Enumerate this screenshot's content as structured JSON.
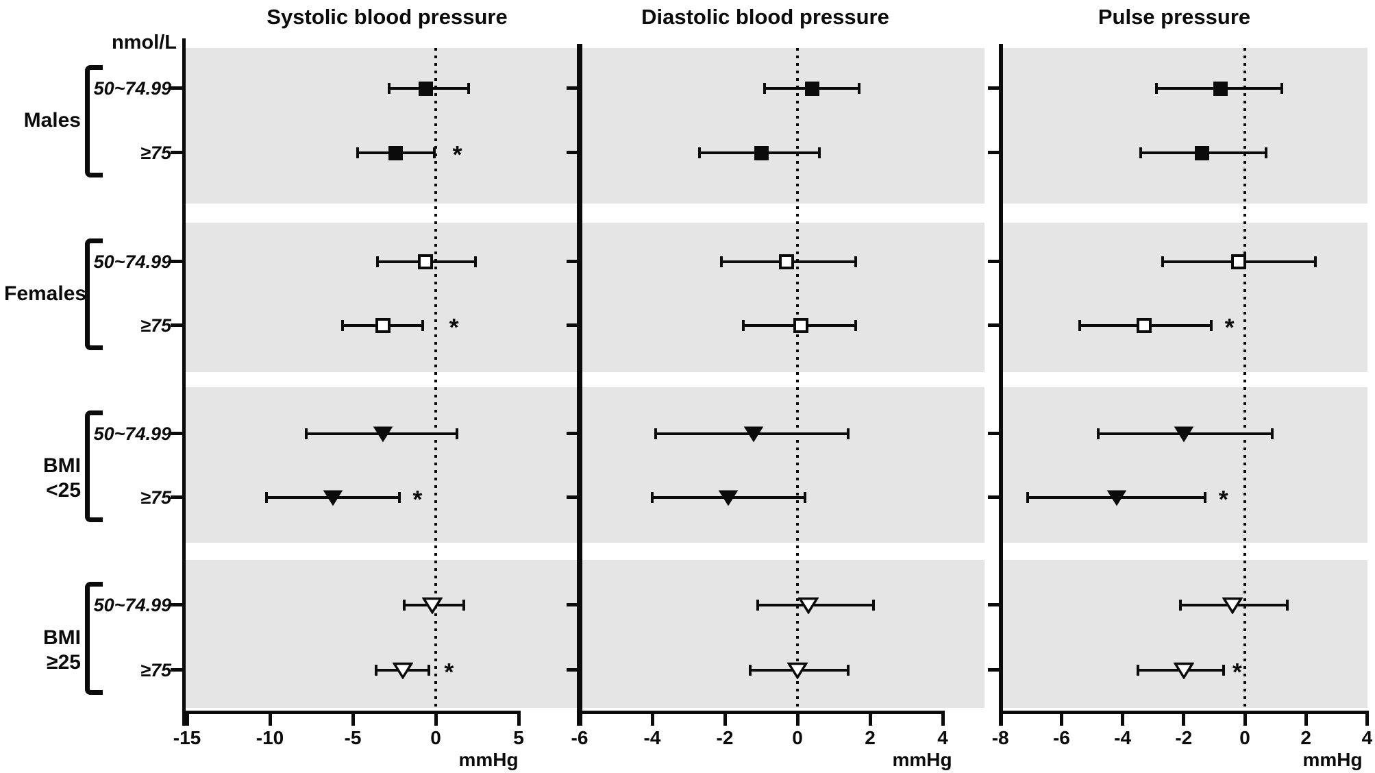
{
  "figure": {
    "background": "#ffffff",
    "band_color": "#e5e5e5",
    "ink": "#0b0b0b",
    "significance_symbol": "*"
  },
  "chart_data": {
    "type": "forest",
    "orientation": "horizontal",
    "exposure_unit": "nmol/L",
    "effect_unit": "mmHg",
    "row_categories": [
      "50~74.99",
      "≥75"
    ],
    "groups": [
      {
        "label": "Males",
        "marker": "square-filled"
      },
      {
        "label": "Females",
        "marker": "square-open"
      },
      {
        "label": "BMI <25",
        "marker": "triangle-filled"
      },
      {
        "label": "BMI ≥25",
        "marker": "triangle-open"
      }
    ],
    "zero_line": 0,
    "panels": [
      {
        "title": "Systolic blood pressure",
        "xlabel": "mmHg",
        "xlim": [
          -15,
          8.55
        ],
        "ticks": [
          -15,
          -10,
          -5,
          0,
          5
        ],
        "rows": [
          {
            "group": "Males",
            "category": "50~74.99",
            "mean": -0.6,
            "lo": -2.8,
            "hi": 2.0,
            "sig": false
          },
          {
            "group": "Males",
            "category": "≥75",
            "mean": -2.4,
            "lo": -4.7,
            "hi": -0.1,
            "sig": true,
            "sig_x": 1.3
          },
          {
            "group": "Females",
            "category": "50~74.99",
            "mean": -0.6,
            "lo": -3.5,
            "hi": 2.4,
            "sig": false
          },
          {
            "group": "Females",
            "category": "≥75",
            "mean": -3.2,
            "lo": -5.6,
            "hi": -0.8,
            "sig": true,
            "sig_x": 1.1
          },
          {
            "group": "BMI <25",
            "category": "50~74.99",
            "mean": -3.2,
            "lo": -7.8,
            "hi": 1.3,
            "sig": false
          },
          {
            "group": "BMI <25",
            "category": "≥75",
            "mean": -6.2,
            "lo": -10.2,
            "hi": -2.2,
            "sig": true,
            "sig_x": -1.1
          },
          {
            "group": "BMI ≥25",
            "category": "50~74.99",
            "mean": -0.2,
            "lo": -1.9,
            "hi": 1.7,
            "sig": false
          },
          {
            "group": "BMI ≥25",
            "category": "≥75",
            "mean": -2.0,
            "lo": -3.6,
            "hi": -0.4,
            "sig": true,
            "sig_x": 0.8
          }
        ]
      },
      {
        "title": "Diastolic blood pressure",
        "xlabel": "mmHg",
        "xlim": [
          -6,
          5.15
        ],
        "ticks": [
          -6,
          -4,
          -2,
          0,
          2,
          4
        ],
        "rows": [
          {
            "group": "Males",
            "category": "50~74.99",
            "mean": 0.4,
            "lo": -0.9,
            "hi": 1.7,
            "sig": false
          },
          {
            "group": "Males",
            "category": "≥75",
            "mean": -1.0,
            "lo": -2.7,
            "hi": 0.6,
            "sig": false
          },
          {
            "group": "Females",
            "category": "50~74.99",
            "mean": -0.3,
            "lo": -2.1,
            "hi": 1.6,
            "sig": false
          },
          {
            "group": "Females",
            "category": "≥75",
            "mean": 0.1,
            "lo": -1.5,
            "hi": 1.6,
            "sig": false
          },
          {
            "group": "BMI <25",
            "category": "50~74.99",
            "mean": -1.2,
            "lo": -3.9,
            "hi": 1.4,
            "sig": false
          },
          {
            "group": "BMI <25",
            "category": "≥75",
            "mean": -1.9,
            "lo": -4.0,
            "hi": 0.2,
            "sig": false
          },
          {
            "group": "BMI ≥25",
            "category": "50~74.99",
            "mean": 0.3,
            "lo": -1.1,
            "hi": 2.1,
            "sig": false
          },
          {
            "group": "BMI ≥25",
            "category": "≥75",
            "mean": 0.0,
            "lo": -1.3,
            "hi": 1.4,
            "sig": false
          }
        ]
      },
      {
        "title": "Pulse pressure",
        "xlabel": "mmHg",
        "xlim": [
          -8,
          4.05
        ],
        "ticks": [
          -8,
          -6,
          -4,
          -2,
          0,
          2,
          4
        ],
        "rows": [
          {
            "group": "Males",
            "category": "50~74.99",
            "mean": -0.8,
            "lo": -2.9,
            "hi": 1.2,
            "sig": false
          },
          {
            "group": "Males",
            "category": "≥75",
            "mean": -1.4,
            "lo": -3.4,
            "hi": 0.7,
            "sig": false
          },
          {
            "group": "Females",
            "category": "50~74.99",
            "mean": -0.2,
            "lo": -2.7,
            "hi": 2.3,
            "sig": false
          },
          {
            "group": "Females",
            "category": "≥75",
            "mean": -3.3,
            "lo": -5.4,
            "hi": -1.1,
            "sig": true,
            "sig_x": -0.5
          },
          {
            "group": "BMI <25",
            "category": "50~74.99",
            "mean": -2.0,
            "lo": -4.8,
            "hi": 0.9,
            "sig": false
          },
          {
            "group": "BMI <25",
            "category": "≥75",
            "mean": -4.2,
            "lo": -7.1,
            "hi": -1.3,
            "sig": true,
            "sig_x": -0.7
          },
          {
            "group": "BMI ≥25",
            "category": "50~74.99",
            "mean": -0.4,
            "lo": -2.1,
            "hi": 1.4,
            "sig": false
          },
          {
            "group": "BMI ≥25",
            "category": "≥75",
            "mean": -2.0,
            "lo": -3.5,
            "hi": -0.7,
            "sig": true,
            "sig_x": -0.25
          }
        ]
      }
    ]
  }
}
